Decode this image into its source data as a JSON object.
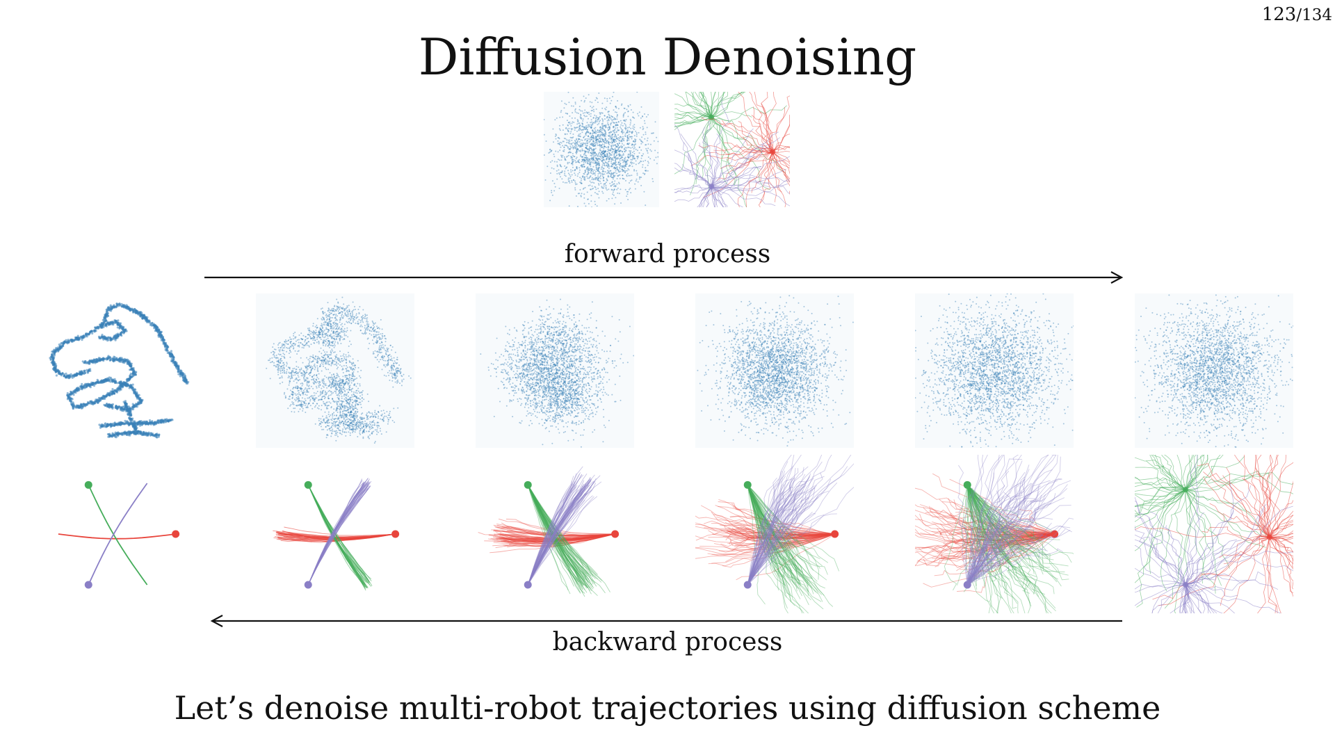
{
  "slide": {
    "title": "Diffusion Denoising",
    "page_current": "123",
    "page_total": "/134",
    "forward_label": "forward process",
    "backward_label": "backward process",
    "subtitle": "Let’s denoise multi-robot trajectories using diffusion scheme"
  },
  "colors": {
    "points": "#3b82b8",
    "red": "#e8453c",
    "green": "#46ad5b",
    "purple": "#8a7fc6",
    "arrow": "#111111"
  }
}
